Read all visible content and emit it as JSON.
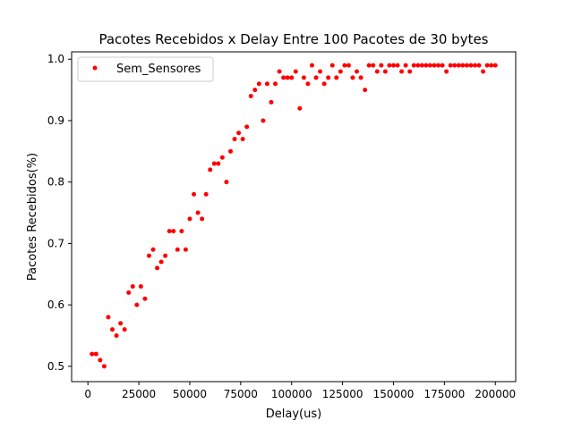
{
  "chart_data": {
    "type": "scatter",
    "title": "Pacotes Recebidos x Delay Entre 100 Pacotes de 30 bytes",
    "xlabel": "Delay(us)",
    "ylabel": "Pacotes Recebidos(%)",
    "xlim": [
      -8000,
      210000
    ],
    "ylim": [
      0.475,
      1.012
    ],
    "xticks": [
      0,
      25000,
      50000,
      75000,
      100000,
      125000,
      150000,
      175000,
      200000
    ],
    "xtick_labels": [
      "0",
      "25000",
      "50000",
      "75000",
      "100000",
      "125000",
      "150000",
      "175000",
      "200000"
    ],
    "yticks": [
      0.5,
      0.6,
      0.7,
      0.8,
      0.9,
      1.0
    ],
    "ytick_labels": [
      "0.5",
      "0.6",
      "0.7",
      "0.8",
      "0.9",
      "1.0"
    ],
    "grid": false,
    "legend_position": "top-left",
    "series": [
      {
        "name": "Sem_Sensores",
        "color": "#ff0000",
        "marker": "circle",
        "x": [
          2000,
          4000,
          6000,
          8000,
          10000,
          12000,
          14000,
          16000,
          18000,
          20000,
          22000,
          24000,
          26000,
          28000,
          30000,
          32000,
          34000,
          36000,
          38000,
          40000,
          42000,
          44000,
          46000,
          48000,
          50000,
          52000,
          54000,
          56000,
          58000,
          60000,
          62000,
          64000,
          66000,
          68000,
          70000,
          72000,
          74000,
          76000,
          78000,
          80000,
          82000,
          84000,
          86000,
          88000,
          90000,
          92000,
          94000,
          96000,
          98000,
          100000,
          102000,
          104000,
          106000,
          108000,
          110000,
          112000,
          114000,
          116000,
          118000,
          120000,
          122000,
          124000,
          126000,
          128000,
          130000,
          132000,
          134000,
          136000,
          138000,
          140000,
          142000,
          144000,
          146000,
          148000,
          150000,
          152000,
          154000,
          156000,
          158000,
          160000,
          162000,
          164000,
          166000,
          168000,
          170000,
          172000,
          174000,
          176000,
          178000,
          180000,
          182000,
          184000,
          186000,
          188000,
          190000,
          192000,
          194000,
          196000,
          198000,
          200000
        ],
        "y": [
          0.52,
          0.52,
          0.51,
          0.5,
          0.58,
          0.56,
          0.55,
          0.57,
          0.56,
          0.62,
          0.63,
          0.6,
          0.63,
          0.61,
          0.68,
          0.69,
          0.66,
          0.67,
          0.68,
          0.72,
          0.72,
          0.69,
          0.72,
          0.69,
          0.74,
          0.78,
          0.75,
          0.74,
          0.78,
          0.82,
          0.83,
          0.83,
          0.84,
          0.8,
          0.85,
          0.87,
          0.88,
          0.87,
          0.89,
          0.94,
          0.95,
          0.96,
          0.9,
          0.96,
          0.93,
          0.96,
          0.98,
          0.97,
          0.97,
          0.97,
          0.98,
          0.92,
          0.97,
          0.96,
          0.99,
          0.97,
          0.98,
          0.96,
          0.97,
          0.99,
          0.97,
          0.98,
          0.99,
          0.99,
          0.97,
          0.98,
          0.97,
          0.95,
          0.99,
          0.99,
          0.98,
          0.99,
          0.98,
          0.99,
          0.99,
          0.99,
          0.98,
          0.99,
          0.98,
          0.99,
          0.99,
          0.99,
          0.99,
          0.99,
          0.99,
          0.99,
          0.99,
          0.98,
          0.99,
          0.99,
          0.99,
          0.99,
          0.99,
          0.99,
          0.99,
          0.99,
          0.98,
          0.99,
          0.99,
          0.99
        ]
      }
    ]
  }
}
